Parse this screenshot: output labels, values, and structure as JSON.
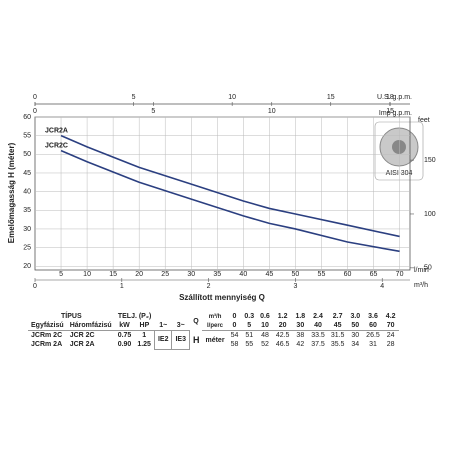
{
  "chart_data": {
    "type": "line",
    "ylabel": "Emelőmagasság H (méter)",
    "xlabel": "Szállított mennyiség Q",
    "x_unit": "l/min",
    "x": [
      5,
      10,
      20,
      30,
      40,
      45,
      50,
      60,
      70
    ],
    "series": [
      {
        "name": "JCR2A",
        "color": "#2b3f80",
        "values": [
          55,
          52,
          46.5,
          42,
          37.5,
          35.5,
          34,
          31,
          28
        ]
      },
      {
        "name": "JCR2C",
        "color": "#2b3f80",
        "values": [
          51,
          48,
          42.5,
          38,
          33.5,
          31.5,
          30,
          26.5,
          24
        ]
      }
    ],
    "xlim": [
      0,
      72
    ],
    "xticks": [
      5,
      10,
      15,
      20,
      25,
      30,
      35,
      40,
      45,
      50,
      55,
      60,
      65,
      70
    ],
    "ylim": [
      19,
      60
    ],
    "yticks": [
      20,
      25,
      30,
      35,
      40,
      45,
      50,
      55,
      60
    ],
    "y2_unit": "feet",
    "y2lim": [
      48,
      190
    ],
    "y2ticks": [
      50,
      100,
      150
    ],
    "top_axis": {
      "unit": "U.S. g.p.m.",
      "lim": [
        0,
        19.02
      ],
      "ticks": [
        0,
        5,
        10,
        15,
        18
      ]
    },
    "top_axis2": {
      "unit": "Imp g.p.m.",
      "lim": [
        0,
        15.84
      ],
      "ticks": [
        0,
        5,
        10,
        15
      ]
    },
    "bottom_axis2": {
      "unit": "m³/h",
      "lim": [
        0,
        4.32
      ],
      "ticks": [
        0,
        1,
        2,
        3,
        4
      ]
    },
    "material_label": "AISI 304",
    "grid": true
  },
  "table": {
    "header": {
      "type": "TÍPUS",
      "power": "TELJ. (P₂)",
      "single": "Egyfázisú",
      "three": "Háromfázisú",
      "kw": "kW",
      "hp": "HP",
      "ph1": "1~",
      "ph3": "3~",
      "q": "Q",
      "q_unit_m3h": "m³/h",
      "q_unit_lmin": "l/perc"
    },
    "q_m3h": [
      "0",
      "0.3",
      "0.6",
      "1.2",
      "1.8",
      "2.4",
      "2.7",
      "3.0",
      "3.6",
      "4.2"
    ],
    "q_lmin": [
      "0",
      "5",
      "10",
      "20",
      "30",
      "40",
      "45",
      "50",
      "60",
      "70"
    ],
    "ie2": "IE2",
    "ie3": "IE3",
    "h": "H",
    "h_unit": "méter",
    "rows": [
      {
        "single": "JCRm 2C",
        "three": "JCR 2C",
        "kw": "0.75",
        "hp": "1",
        "h": [
          "54",
          "51",
          "48",
          "42.5",
          "38",
          "33.5",
          "31.5",
          "30",
          "26.5",
          "24"
        ]
      },
      {
        "single": "JCRm 2A",
        "three": "JCR 2A",
        "kw": "0.90",
        "hp": "1.25",
        "h": [
          "58",
          "55",
          "52",
          "46.5",
          "42",
          "37.5",
          "35.5",
          "34",
          "31",
          "28"
        ]
      }
    ]
  }
}
